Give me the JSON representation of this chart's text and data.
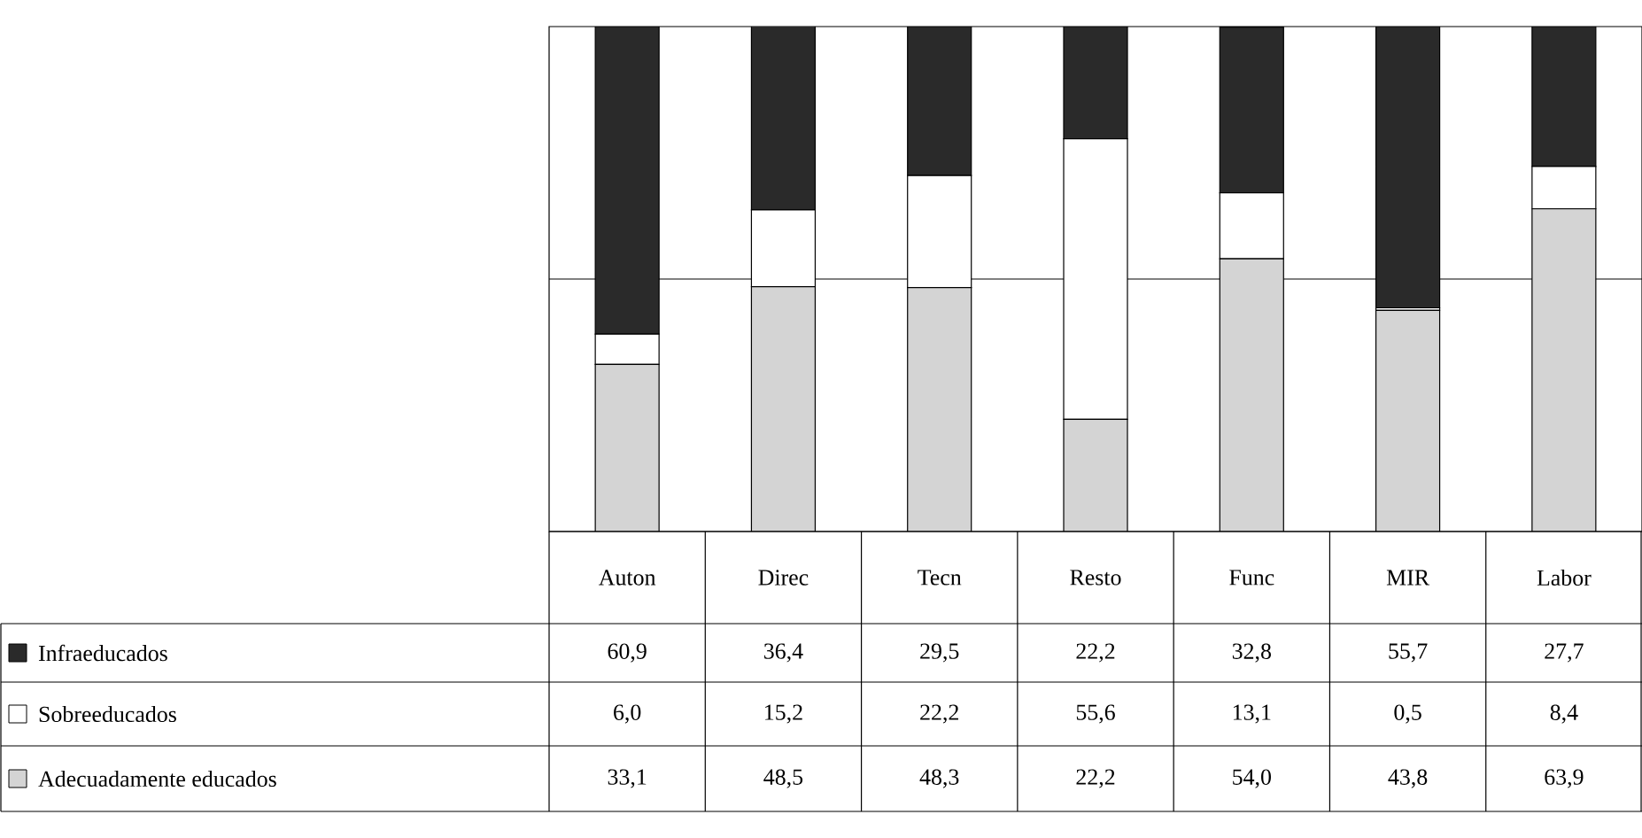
{
  "chart_data": {
    "type": "bar",
    "stacked": true,
    "categories": [
      "Auton",
      "Direc",
      "Tecn",
      "Resto",
      "Func",
      "MIR",
      "Labor"
    ],
    "series": [
      {
        "name": "Adecuadamente educados",
        "color": "#d4d4d4",
        "values": [
          33.1,
          48.5,
          48.3,
          22.2,
          54.0,
          43.8,
          63.9
        ],
        "value_labels": [
          "33,1",
          "48,5",
          "48,3",
          "22,2",
          "54,0",
          "43,8",
          "63,9"
        ]
      },
      {
        "name": "Sobreeducados",
        "color": "#ffffff",
        "values": [
          6.0,
          15.2,
          22.2,
          55.6,
          13.1,
          0.5,
          8.4
        ],
        "value_labels": [
          "6,0",
          "15,2",
          "22,2",
          "55,6",
          "13,1",
          "0,5",
          "8,4"
        ]
      },
      {
        "name": "Infraeducados",
        "color": "#2a2a2a",
        "values": [
          60.9,
          36.4,
          29.5,
          22.2,
          32.8,
          55.7,
          27.7
        ],
        "value_labels": [
          "60,9",
          "36,4",
          "29,5",
          "22,2",
          "32,8",
          "55,7",
          "27,7"
        ]
      }
    ],
    "ylim": [
      0,
      100
    ],
    "ref_lines": [
      {
        "axis": "y",
        "value": 50
      }
    ],
    "legend": "bottom"
  }
}
